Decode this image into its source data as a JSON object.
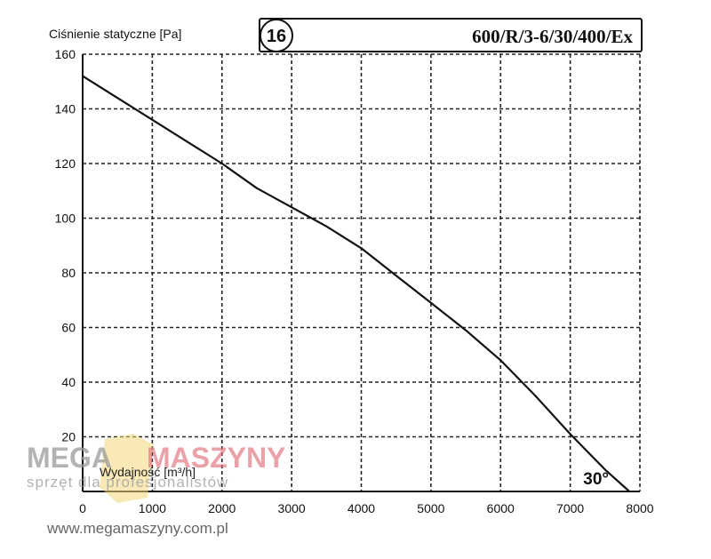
{
  "chart_data": {
    "type": "line",
    "title": "600/R/3-6/30/400/Ex",
    "curve_number": "16",
    "ylabel": "Ciśnienie statyczne [Pa]",
    "xlabel": "Wydajność [m³/h]",
    "angle_label": "30°",
    "xlim": [
      0,
      8000
    ],
    "ylim": [
      0,
      160
    ],
    "x_ticks": [
      0,
      1000,
      2000,
      3000,
      4000,
      5000,
      6000,
      7000,
      8000
    ],
    "y_ticks": [
      20,
      40,
      60,
      80,
      100,
      120,
      140,
      160
    ],
    "grid": true,
    "series": [
      {
        "x": [
          0,
          500,
          1000,
          1500,
          2000,
          2500,
          3000,
          3500,
          4000,
          4500,
          5000,
          5500,
          6000,
          6500,
          7000,
          7500,
          7850
        ],
        "values": [
          152,
          144,
          136,
          128,
          120,
          111,
          104,
          97,
          89,
          79,
          69,
          59,
          48,
          35,
          21,
          8,
          0
        ]
      }
    ]
  },
  "watermark": {
    "brand_part1": "MEGA",
    "brand_part2": "MASZYNY",
    "tagline": "sprzęt dla profesjonalistów",
    "url": "www.megamaszyny.com.pl"
  }
}
